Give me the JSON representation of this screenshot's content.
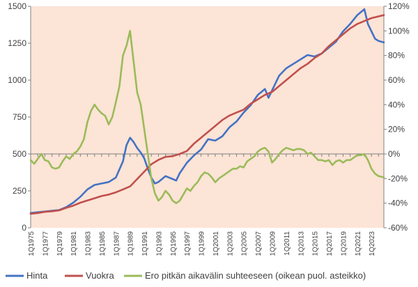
{
  "chart_data": {
    "type": "line",
    "title": "",
    "plot_background": "#fce4d6",
    "y_left": {
      "min": 0,
      "max": 1500,
      "ticks": [
        0,
        250,
        500,
        750,
        1000,
        1250,
        1500
      ]
    },
    "y_right": {
      "min": -60,
      "max": 120,
      "ticks": [
        "-60%",
        "-40%",
        "-20%",
        "0%",
        "20%",
        "40%",
        "60%",
        "80%",
        "100%",
        "120%"
      ]
    },
    "x": {
      "start_year": 1975,
      "end_year": 2024.75,
      "tick_labels": [
        "1Q1975",
        "1Q1977",
        "1Q1979",
        "1Q1981",
        "1Q1983",
        "1Q1985",
        "1Q1987",
        "1Q1989",
        "1Q1991",
        "1Q1993",
        "1Q1995",
        "1Q1997",
        "1Q1999",
        "1Q2001",
        "1Q2003",
        "1Q2005",
        "1Q2007",
        "1Q2009",
        "1Q2011",
        "1Q2013",
        "1Q2015",
        "1Q2017",
        "1Q2019",
        "1Q2021",
        "1Q2023"
      ]
    },
    "series": [
      {
        "name": "Hinta",
        "axis": "left",
        "color": "#4472c4",
        "points": [
          [
            1975,
            100
          ],
          [
            1976,
            105
          ],
          [
            1977,
            110
          ],
          [
            1978,
            115
          ],
          [
            1979,
            120
          ],
          [
            1980,
            140
          ],
          [
            1981,
            170
          ],
          [
            1982,
            210
          ],
          [
            1983,
            260
          ],
          [
            1984,
            290
          ],
          [
            1985,
            300
          ],
          [
            1986,
            310
          ],
          [
            1987,
            340
          ],
          [
            1988,
            450
          ],
          [
            1988.5,
            560
          ],
          [
            1989,
            610
          ],
          [
            1989.5,
            580
          ],
          [
            1990,
            540
          ],
          [
            1990.5,
            510
          ],
          [
            1991,
            470
          ],
          [
            1991.5,
            400
          ],
          [
            1992,
            340
          ],
          [
            1992.5,
            300
          ],
          [
            1993,
            310
          ],
          [
            1994,
            350
          ],
          [
            1995,
            330
          ],
          [
            1995.5,
            320
          ],
          [
            1996,
            370
          ],
          [
            1997,
            440
          ],
          [
            1998,
            490
          ],
          [
            1999,
            530
          ],
          [
            2000,
            600
          ],
          [
            2001,
            590
          ],
          [
            2002,
            620
          ],
          [
            2003,
            680
          ],
          [
            2004,
            720
          ],
          [
            2005,
            780
          ],
          [
            2006,
            830
          ],
          [
            2007,
            900
          ],
          [
            2008,
            940
          ],
          [
            2008.5,
            880
          ],
          [
            2009,
            930
          ],
          [
            2010,
            1030
          ],
          [
            2011,
            1080
          ],
          [
            2012,
            1110
          ],
          [
            2013,
            1140
          ],
          [
            2014,
            1170
          ],
          [
            2015,
            1160
          ],
          [
            2016,
            1180
          ],
          [
            2017,
            1220
          ],
          [
            2018,
            1260
          ],
          [
            2019,
            1330
          ],
          [
            2020,
            1380
          ],
          [
            2021,
            1440
          ],
          [
            2021.5,
            1460
          ],
          [
            2022,
            1480
          ],
          [
            2022.5,
            1380
          ],
          [
            2023,
            1330
          ],
          [
            2023.5,
            1280
          ],
          [
            2024,
            1265
          ],
          [
            2024.75,
            1255
          ]
        ]
      },
      {
        "name": "Vuokra",
        "axis": "left",
        "color": "#c0504d",
        "points": [
          [
            1975,
            95
          ],
          [
            1976,
            100
          ],
          [
            1977,
            108
          ],
          [
            1978,
            112
          ],
          [
            1979,
            118
          ],
          [
            1980,
            135
          ],
          [
            1981,
            150
          ],
          [
            1982,
            170
          ],
          [
            1983,
            185
          ],
          [
            1984,
            200
          ],
          [
            1985,
            215
          ],
          [
            1986,
            225
          ],
          [
            1987,
            240
          ],
          [
            1988,
            260
          ],
          [
            1989,
            280
          ],
          [
            1990,
            330
          ],
          [
            1991,
            380
          ],
          [
            1992,
            430
          ],
          [
            1993,
            460
          ],
          [
            1994,
            480
          ],
          [
            1995,
            485
          ],
          [
            1996,
            500
          ],
          [
            1997,
            520
          ],
          [
            1998,
            570
          ],
          [
            1999,
            610
          ],
          [
            2000,
            650
          ],
          [
            2001,
            690
          ],
          [
            2002,
            730
          ],
          [
            2003,
            760
          ],
          [
            2004,
            780
          ],
          [
            2005,
            800
          ],
          [
            2006,
            840
          ],
          [
            2007,
            870
          ],
          [
            2008,
            900
          ],
          [
            2009,
            920
          ],
          [
            2010,
            960
          ],
          [
            2011,
            1000
          ],
          [
            2012,
            1040
          ],
          [
            2013,
            1080
          ],
          [
            2014,
            1110
          ],
          [
            2015,
            1150
          ],
          [
            2016,
            1180
          ],
          [
            2017,
            1230
          ],
          [
            2018,
            1270
          ],
          [
            2019,
            1310
          ],
          [
            2020,
            1350
          ],
          [
            2021,
            1380
          ],
          [
            2022,
            1400
          ],
          [
            2023,
            1420
          ],
          [
            2024.75,
            1440
          ]
        ]
      },
      {
        "name": "Ero pitkän aikavälin suhteeseen (oikean puol. asteikko)",
        "axis": "right",
        "color": "#9bbb59",
        "points": [
          [
            1975,
            -5
          ],
          [
            1975.5,
            -8
          ],
          [
            1976,
            -4
          ],
          [
            1976.5,
            0
          ],
          [
            1977,
            -5
          ],
          [
            1977.5,
            -6
          ],
          [
            1978,
            -11
          ],
          [
            1978.5,
            -12
          ],
          [
            1979,
            -11
          ],
          [
            1979.5,
            -6
          ],
          [
            1980,
            -2
          ],
          [
            1980.5,
            -4
          ],
          [
            1981,
            0
          ],
          [
            1981.5,
            2
          ],
          [
            1982,
            6
          ],
          [
            1982.5,
            12
          ],
          [
            1983,
            26
          ],
          [
            1983.5,
            35
          ],
          [
            1984,
            40
          ],
          [
            1984.5,
            36
          ],
          [
            1985,
            33
          ],
          [
            1985.5,
            31
          ],
          [
            1986,
            24
          ],
          [
            1986.5,
            30
          ],
          [
            1987,
            42
          ],
          [
            1987.5,
            55
          ],
          [
            1988,
            80
          ],
          [
            1988.5,
            88
          ],
          [
            1989,
            100
          ],
          [
            1989.5,
            75
          ],
          [
            1990,
            50
          ],
          [
            1990.5,
            40
          ],
          [
            1991,
            20
          ],
          [
            1991.5,
            0
          ],
          [
            1992,
            -20
          ],
          [
            1992.5,
            -32
          ],
          [
            1993,
            -38
          ],
          [
            1993.5,
            -35
          ],
          [
            1994,
            -30
          ],
          [
            1994.5,
            -33
          ],
          [
            1995,
            -38
          ],
          [
            1995.5,
            -40
          ],
          [
            1996,
            -38
          ],
          [
            1996.5,
            -33
          ],
          [
            1997,
            -28
          ],
          [
            1997.5,
            -30
          ],
          [
            1998,
            -26
          ],
          [
            1998.5,
            -23
          ],
          [
            1999,
            -18
          ],
          [
            1999.5,
            -15
          ],
          [
            2000,
            -16
          ],
          [
            2000.5,
            -19
          ],
          [
            2001,
            -23
          ],
          [
            2001.5,
            -20
          ],
          [
            2002,
            -18
          ],
          [
            2002.5,
            -16
          ],
          [
            2003,
            -14
          ],
          [
            2003.5,
            -12
          ],
          [
            2004,
            -12
          ],
          [
            2004.5,
            -10
          ],
          [
            2005,
            -11
          ],
          [
            2005.5,
            -6
          ],
          [
            2006,
            -4
          ],
          [
            2006.5,
            -2
          ],
          [
            2007,
            2
          ],
          [
            2007.5,
            4
          ],
          [
            2008,
            5
          ],
          [
            2008.5,
            2
          ],
          [
            2009,
            -7
          ],
          [
            2009.5,
            -4
          ],
          [
            2010,
            0
          ],
          [
            2010.5,
            3
          ],
          [
            2011,
            5
          ],
          [
            2011.5,
            4
          ],
          [
            2012,
            3
          ],
          [
            2012.5,
            4
          ],
          [
            2013,
            4
          ],
          [
            2013.5,
            3
          ],
          [
            2014,
            0
          ],
          [
            2014.5,
            1
          ],
          [
            2015,
            -2
          ],
          [
            2015.5,
            -5
          ],
          [
            2016,
            -5
          ],
          [
            2016.5,
            -6
          ],
          [
            2017,
            -5
          ],
          [
            2017.5,
            -9
          ],
          [
            2018,
            -6
          ],
          [
            2018.5,
            -5
          ],
          [
            2019,
            -7
          ],
          [
            2019.5,
            -5
          ],
          [
            2020,
            -5
          ],
          [
            2020.5,
            -3
          ],
          [
            2021,
            -1
          ],
          [
            2021.5,
            -1
          ],
          [
            2022,
            0
          ],
          [
            2022.5,
            -5
          ],
          [
            2023,
            -12
          ],
          [
            2023.5,
            -16
          ],
          [
            2024,
            -18
          ],
          [
            2024.75,
            -19
          ]
        ]
      }
    ],
    "legend": {
      "placement": "bottom",
      "entries": [
        "Hinta",
        "Vuokra",
        "Ero pitkän aikavälin suhteeseen (oikean puol. asteikko)"
      ]
    },
    "grid": false
  }
}
